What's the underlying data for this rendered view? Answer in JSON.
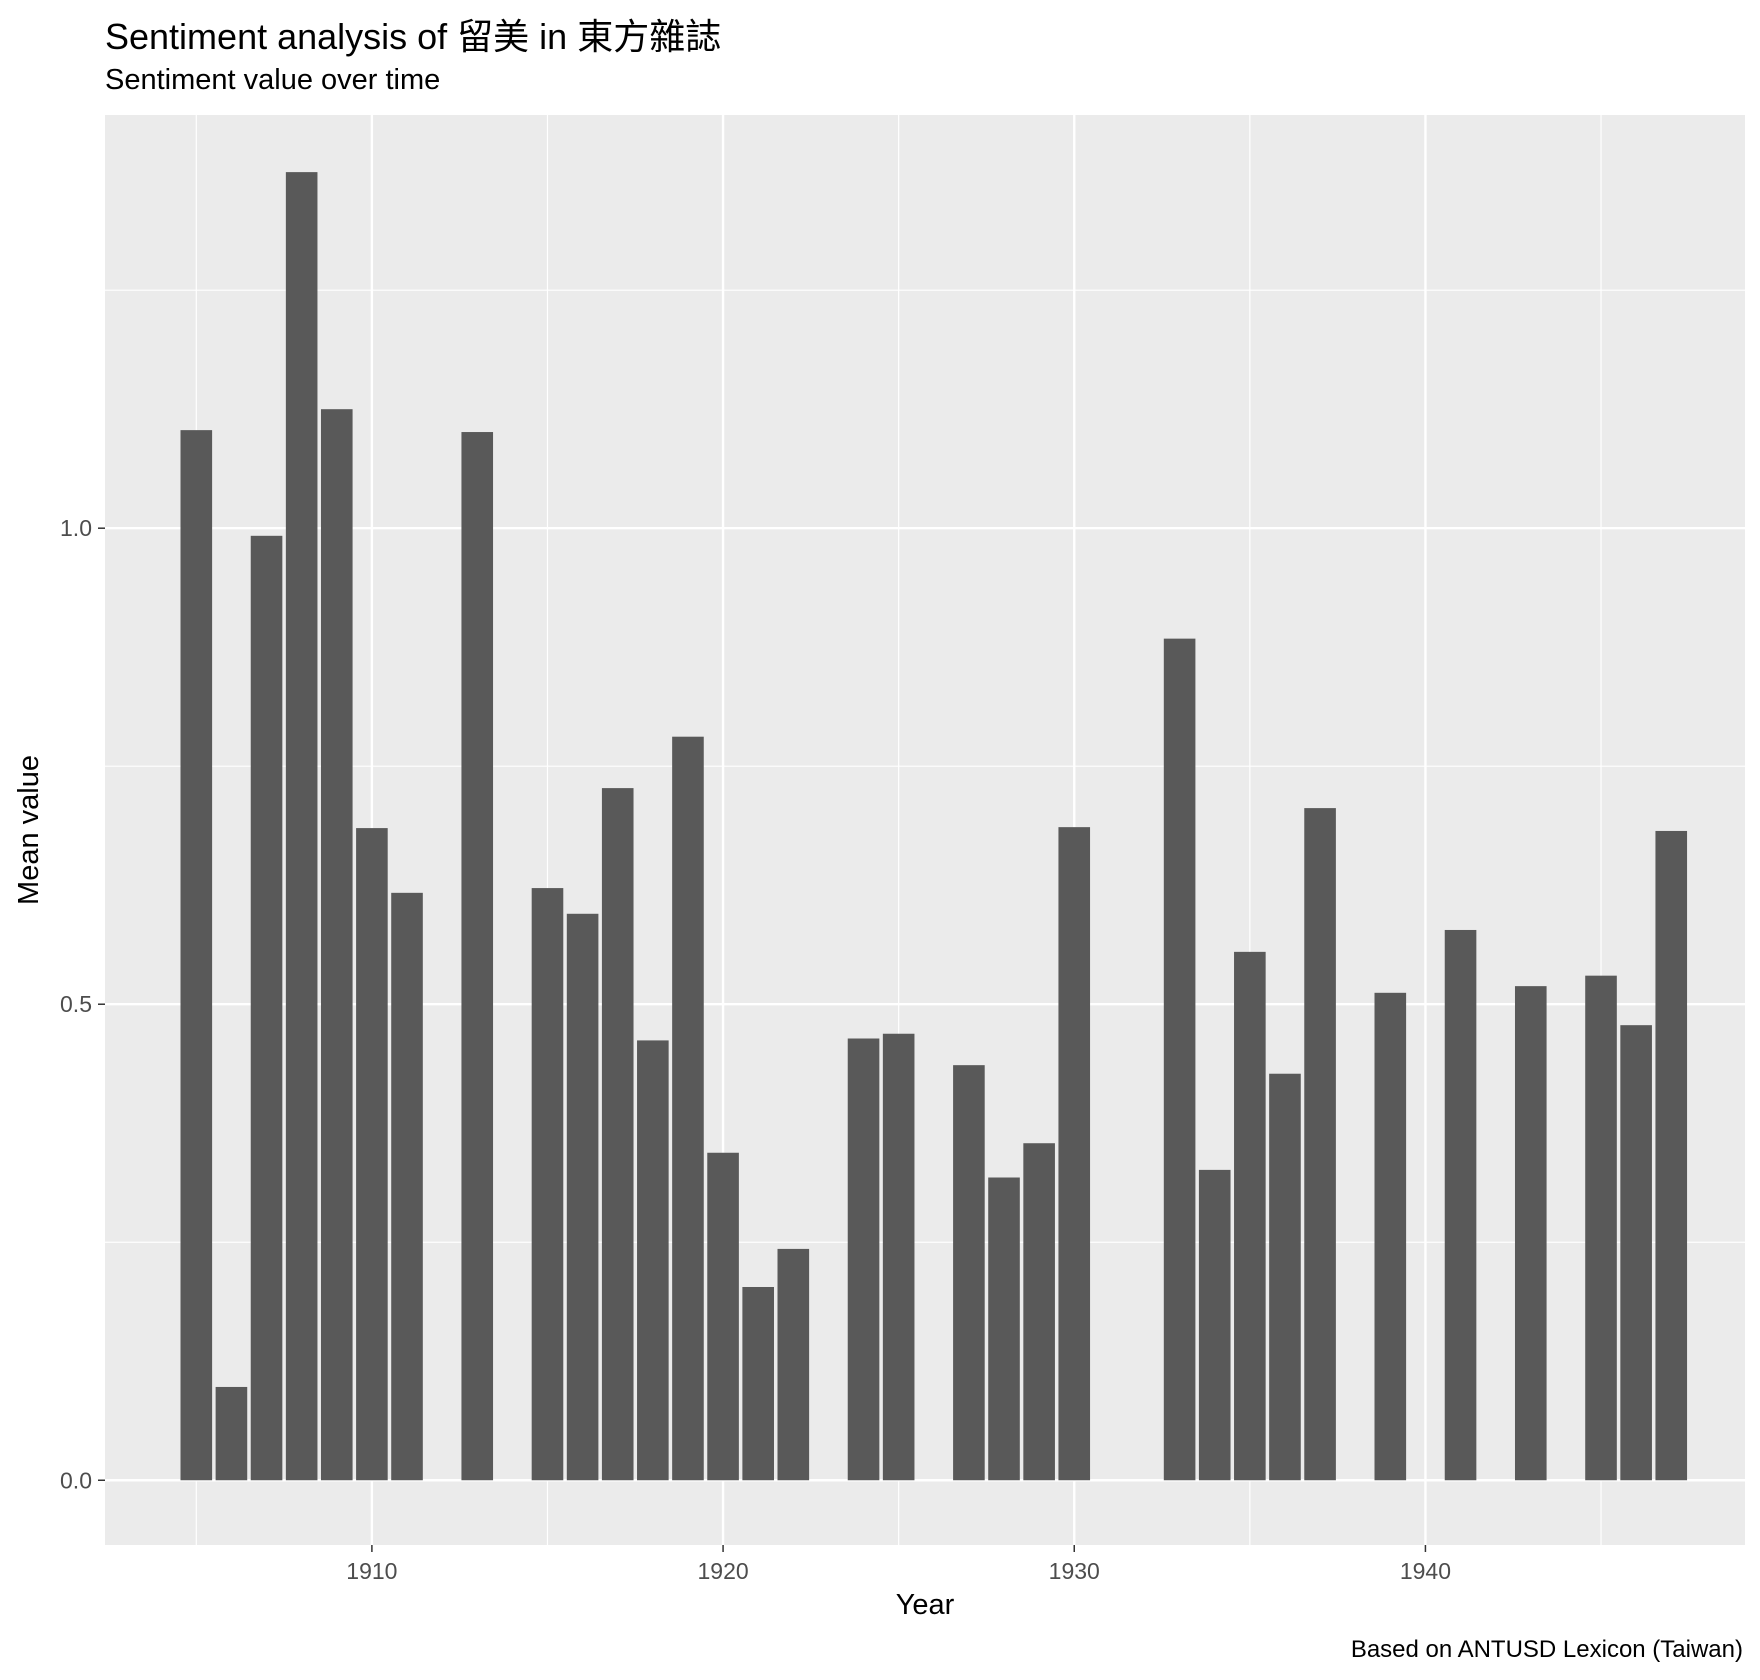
{
  "chart_data": {
    "type": "bar",
    "title": "Sentiment analysis of 留美 in 東方雜誌",
    "subtitle": "Sentiment value over time",
    "caption": "Based on ANTUSD Lexicon (Taiwan)",
    "xlabel": "Year",
    "ylabel": "Mean value",
    "xlim": [
      1902.4,
      1949.1
    ],
    "ylim": [
      -0.068,
      1.434
    ],
    "x_ticks": [
      1910,
      1920,
      1930,
      1940
    ],
    "y_ticks": [
      0.0,
      0.5,
      1.0
    ],
    "y_tick_labels": [
      "0.0",
      "0.5",
      "1.0"
    ],
    "bar_color": "#595959",
    "panel_color": "#ebebeb",
    "grid": true,
    "x": [
      1905,
      1906,
      1907,
      1908,
      1909,
      1910,
      1911,
      1913,
      1915,
      1916,
      1917,
      1918,
      1919,
      1920,
      1921,
      1922,
      1924,
      1925,
      1927,
      1928,
      1929,
      1930,
      1933,
      1934,
      1935,
      1936,
      1937,
      1939,
      1941,
      1943,
      1945,
      1946,
      1947
    ],
    "values": [
      1.103,
      0.098,
      0.992,
      1.374,
      1.125,
      0.685,
      0.617,
      1.101,
      0.622,
      0.595,
      0.727,
      0.462,
      0.781,
      0.344,
      0.203,
      0.243,
      0.464,
      0.469,
      0.436,
      0.318,
      0.354,
      0.686,
      0.884,
      0.326,
      0.555,
      0.427,
      0.706,
      0.512,
      0.578,
      0.519,
      0.53,
      0.478,
      0.682
    ]
  }
}
